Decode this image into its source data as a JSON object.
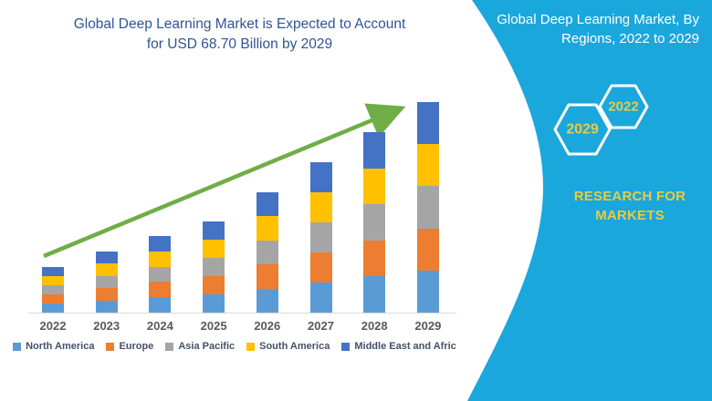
{
  "chart": {
    "title_line1": "Global Deep Learning Market is Expected to Account",
    "title_line2": "for USD 68.70 Billion by 2029",
    "title_color": "#2F5496",
    "arrow_color": "#6FAE46",
    "axis_line_color": "#D9D9D9"
  },
  "chart_data": {
    "type": "bar",
    "stacked": true,
    "title": "Global Deep Learning Market is Expected to Account for USD 68.70 Billion by 2029",
    "units": "USD Billion",
    "categories": [
      "2022",
      "2023",
      "2024",
      "2025",
      "2026",
      "2027",
      "2028",
      "2029"
    ],
    "series": [
      {
        "name": "North America",
        "color": "#5B9BD5",
        "values": [
          3.0,
          3.98,
          5.0,
          5.94,
          7.86,
          9.82,
          11.78,
          13.74
        ]
      },
      {
        "name": "Europe",
        "color": "#ED7D31",
        "values": [
          3.0,
          3.98,
          5.0,
          5.94,
          7.86,
          9.82,
          11.78,
          13.74
        ]
      },
      {
        "name": "Asia Pacific",
        "color": "#A5A5A5",
        "values": [
          3.0,
          3.98,
          5.0,
          5.94,
          7.86,
          9.82,
          11.78,
          13.74
        ]
      },
      {
        "name": "South America",
        "color": "#FFC000",
        "values": [
          3.0,
          3.98,
          5.0,
          5.94,
          7.86,
          9.82,
          11.78,
          13.74
        ]
      },
      {
        "name": "Middle East and Africa",
        "color": "#4472C4",
        "values": [
          3.0,
          3.98,
          5.0,
          5.94,
          7.86,
          9.82,
          11.78,
          13.74
        ]
      }
    ],
    "totals_estimated": [
      15.0,
      19.9,
      25.0,
      29.7,
      39.3,
      49.1,
      58.9,
      68.7
    ],
    "values_estimated": true,
    "ylim": [
      0,
      70
    ],
    "grid": false,
    "y_axis_shown": false,
    "legend_position": "bottom",
    "annotations": [
      "green upward trend arrow from 2022 bar to 2029 bar"
    ]
  },
  "sidebar": {
    "title_line1": "Global Deep Learning Market, By",
    "title_line2": "Regions, 2022 to 2029",
    "hexagons": [
      {
        "label": "2029"
      },
      {
        "label": "2022"
      }
    ],
    "brand_line1": "RESEARCH FOR",
    "brand_line2": "MARKETS",
    "background_color": "#1AA7DC",
    "accent_yellow": "#E9CC3F"
  }
}
